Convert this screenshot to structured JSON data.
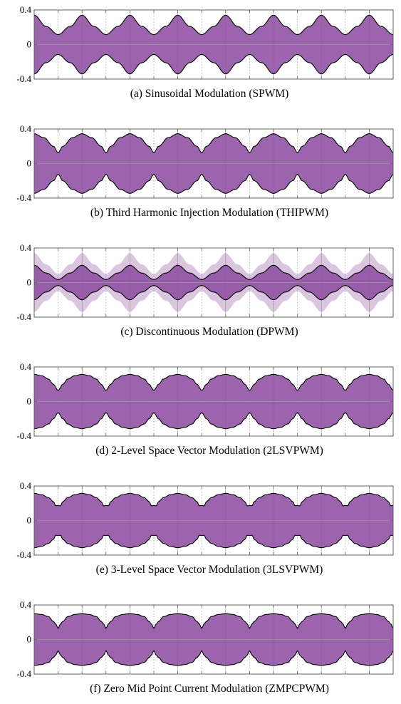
{
  "style": {
    "fill_color": "#8e4fa0",
    "fill_opacity": 0.88,
    "outer_fill_opacity": 0.32,
    "outline_color": "#000000",
    "grid_color": "#9a9a9a",
    "axis_color": "#555555"
  },
  "chart_data": [
    {
      "type": "area",
      "caption": "(a) Sinusoidal Modulation (SPWM)",
      "ylim": [
        -0.4,
        0.4
      ],
      "yticks": [
        "0.4",
        "0",
        "-0.4"
      ],
      "xlim": [
        0,
        7.5
      ],
      "envelope": {
        "x": [
          0,
          0.25,
          0.5,
          0.75,
          1
        ],
        "y": [
          0.34,
          0.21,
          0.115,
          0.21,
          0.34
        ]
      }
    },
    {
      "type": "area",
      "caption": "(b) Third Harmonic Injection Modulation (THIPWM)",
      "ylim": [
        -0.4,
        0.4
      ],
      "yticks": [
        "0.4",
        "0",
        "-0.4"
      ],
      "xlim": [
        0,
        7.5
      ],
      "envelope": {
        "x": [
          0,
          0.2,
          0.4,
          0.5,
          0.6,
          0.8,
          1
        ],
        "y": [
          0.345,
          0.3,
          0.2,
          0.125,
          0.2,
          0.3,
          0.345
        ]
      }
    },
    {
      "type": "area",
      "caption": "(c) Discontinuous Modulation (DPWM)",
      "ylim": [
        -0.4,
        0.4
      ],
      "yticks": [
        "0.4",
        "0",
        "-0.4"
      ],
      "xlim": [
        0,
        7.5
      ],
      "envelope": {
        "x": [
          0,
          0.25,
          0.5,
          0.75,
          1
        ],
        "y": [
          0.2,
          0.11,
          0.035,
          0.11,
          0.2
        ]
      },
      "outer_envelope": {
        "x": [
          0,
          0.25,
          0.5,
          0.75,
          1
        ],
        "y": [
          0.34,
          0.21,
          0.1,
          0.21,
          0.34
        ]
      }
    },
    {
      "type": "area",
      "caption": "(d) 2-Level Space Vector Modulation (2LSVPWM)",
      "ylim": [
        -0.4,
        0.4
      ],
      "yticks": [
        "0.4",
        "0",
        "-0.4"
      ],
      "xlim": [
        0,
        7.5
      ],
      "envelope": {
        "x": [
          0,
          0.15,
          0.3,
          0.4,
          0.5,
          0.6,
          0.7,
          0.85,
          1
        ],
        "y": [
          0.315,
          0.3,
          0.26,
          0.2,
          0.13,
          0.2,
          0.26,
          0.3,
          0.315
        ]
      }
    },
    {
      "type": "area",
      "caption": "(e) 3-Level Space Vector Modulation (3LSVPWM)",
      "ylim": [
        -0.4,
        0.4
      ],
      "yticks": [
        "0.4",
        "0",
        "-0.4"
      ],
      "xlim": [
        0,
        7.5
      ],
      "envelope": {
        "x": [
          0,
          0.15,
          0.3,
          0.4,
          0.45,
          0.5,
          0.55,
          0.6,
          0.7,
          0.85,
          1
        ],
        "y": [
          0.315,
          0.3,
          0.265,
          0.22,
          0.17,
          0.175,
          0.17,
          0.22,
          0.265,
          0.3,
          0.315
        ]
      }
    },
    {
      "type": "area",
      "caption": "(f) Zero Mid Point Current Modulation (ZMPCPWM)",
      "ylim": [
        -0.4,
        0.4
      ],
      "yticks": [
        "0.4",
        "0",
        "-0.4"
      ],
      "xlim": [
        0,
        7.5
      ],
      "envelope": {
        "x": [
          0,
          0.15,
          0.3,
          0.4,
          0.45,
          0.5,
          0.55,
          0.6,
          0.7,
          0.85,
          1
        ],
        "y": [
          0.3,
          0.29,
          0.265,
          0.21,
          0.18,
          0.13,
          0.18,
          0.21,
          0.265,
          0.29,
          0.3
        ]
      }
    }
  ]
}
